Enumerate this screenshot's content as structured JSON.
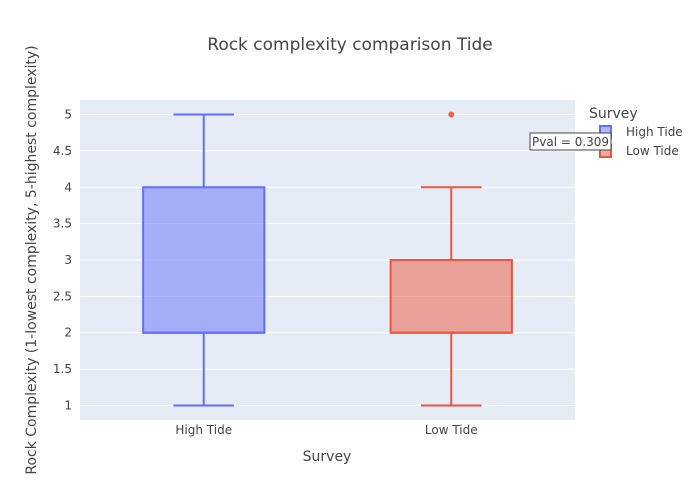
{
  "chart_data": {
    "type": "box",
    "title": "Rock complexity comparison Tide",
    "xlabel": "Survey",
    "ylabel": "Rock Complexity (1-lowest complexity, 5-highest complexity)",
    "categories": [
      "High Tide",
      "Low Tide"
    ],
    "ylim": [
      0.8,
      5.2
    ],
    "yticks": [
      "1",
      "1.5",
      "2",
      "2.5",
      "3",
      "3.5",
      "4",
      "4.5",
      "5"
    ],
    "grid": true,
    "legend": {
      "title": "Survey",
      "position": "top-right"
    },
    "series": [
      {
        "name": "High Tide",
        "min": 1,
        "q1": 2,
        "median": 2,
        "q3": 4,
        "max": 5,
        "outliers": [],
        "color": "#636efa"
      },
      {
        "name": "Low Tide",
        "min": 1,
        "q1": 2,
        "median": 2,
        "q3": 3,
        "max": 4,
        "outliers": [
          5
        ],
        "color": "#ef553b"
      }
    ],
    "annotation": "Pval = 0.309"
  }
}
